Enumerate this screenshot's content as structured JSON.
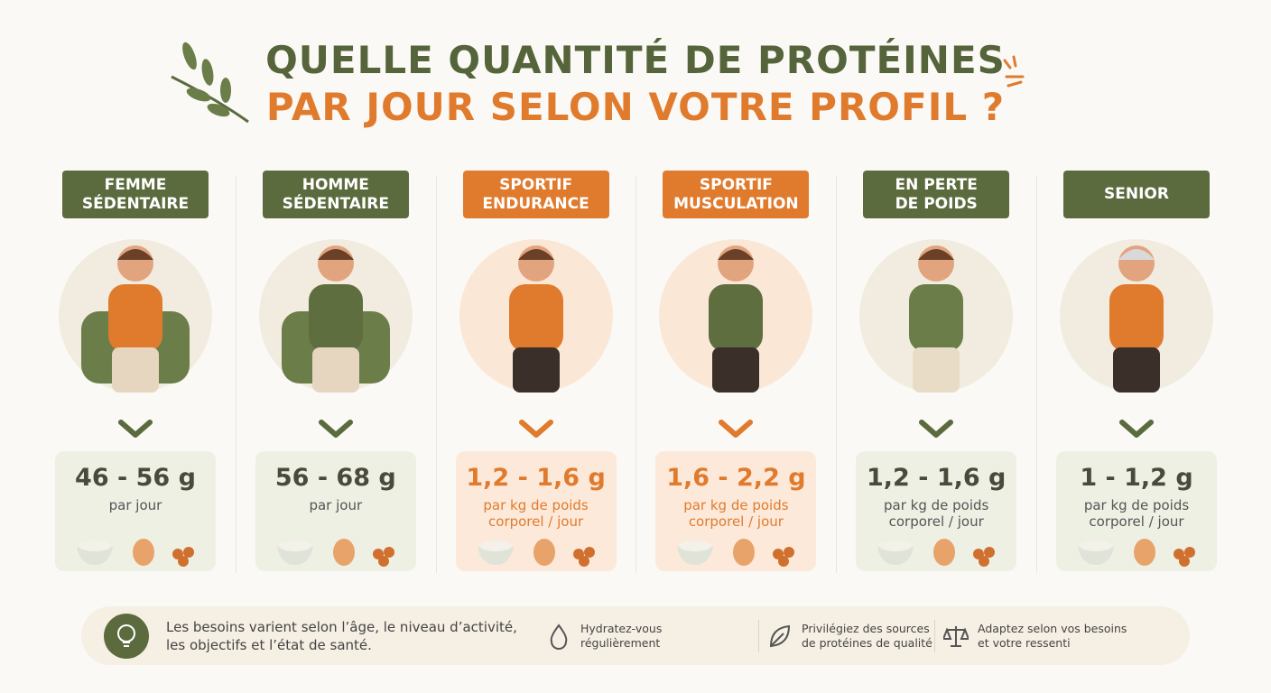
{
  "header": {
    "title_line1": "QUELLE QUANTITÉ DE PROTÉINES",
    "title_line2": "PAR JOUR SELON VOTRE PROFIL ?"
  },
  "profiles": [
    {
      "label": [
        "FEMME",
        "SÉDENTAIRE"
      ],
      "amount": "46 - 56 g",
      "unit": [
        "par jour"
      ],
      "color": "#5b6b3e",
      "bg": "#eef0e4"
    },
    {
      "label": [
        "HOMME",
        "SÉDENTAIRE"
      ],
      "amount": "56 - 68 g",
      "unit": [
        "par jour"
      ],
      "color": "#5b6b3e",
      "bg": "#eef0e4"
    },
    {
      "label": [
        "SPORTIF",
        "ENDURANCE"
      ],
      "amount": "1,2 - 1,6 g",
      "unit": [
        "par kg de poids",
        "corporel / jour"
      ],
      "color": "#e07b2e",
      "bg": "#fde9da"
    },
    {
      "label": [
        "SPORTIF",
        "MUSCULATION"
      ],
      "amount": "1,6 - 2,2 g",
      "unit": [
        "par kg de poids",
        "corporel / jour"
      ],
      "color": "#e07b2e",
      "bg": "#fde9da"
    },
    {
      "label": [
        "EN PERTE",
        "DE POIDS"
      ],
      "amount": "1,2 - 1,6 g",
      "unit": [
        "par kg de poids",
        "corporel / jour"
      ],
      "color": "#5b6b3e",
      "bg": "#eef0e4"
    },
    {
      "label": [
        "SENIOR"
      ],
      "amount": "1 - 1,2 g",
      "unit": [
        "par kg de poids",
        "corporel / jour"
      ],
      "color": "#5b6b3e",
      "bg": "#eef0e4"
    }
  ],
  "footer": {
    "note": [
      "Les besoins varient selon l’âge, le niveau d’activité,",
      "les objectifs et l’état de santé."
    ],
    "tips": [
      [
        "Hydratez-vous",
        "régulièrement"
      ],
      [
        "Privilégiez des sources",
        "de protéines de qualité"
      ],
      [
        "Adaptez selon vos besoins",
        "et votre ressenti"
      ]
    ]
  }
}
